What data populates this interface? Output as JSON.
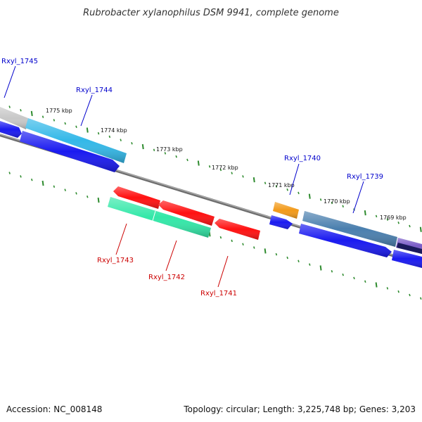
{
  "title": "Rubrobacter xylanophilus DSM 9941, complete genome",
  "footer": {
    "accession": "Accession: NC_008148",
    "summary": "Topology: circular; Length: 3,225,748 bp; Genes: 3,203"
  },
  "colors": {
    "forward_label": "#0000cc",
    "reverse_label": "#cc0000",
    "tick": "#2e8b2e",
    "backbone": "#888888"
  },
  "kbp_labels": [
    "1775 kbp",
    "1774 kbp",
    "1773 kbp",
    "1772 kbp",
    "1771 kbp",
    "1770 kbp",
    "1769 kbp"
  ],
  "genes_forward": [
    {
      "label": "Rxyl_1745",
      "color": "#c8c8c8"
    },
    {
      "label": "Rxyl_1744",
      "color": "#33b8e8"
    },
    {
      "label": "Rxyl_1740",
      "color": "#f29a1a"
    },
    {
      "label": "Rxyl_1739",
      "color": "#4a7fae"
    },
    {
      "label": "",
      "color": "#7a5cc8"
    }
  ],
  "genes_reverse": [
    {
      "label": "Rxyl_1743",
      "color": "#33e8a8"
    },
    {
      "label": "Rxyl_1742",
      "color": "#ff1111"
    },
    {
      "label": "Rxyl_1741",
      "color": "#ff1111"
    }
  ]
}
